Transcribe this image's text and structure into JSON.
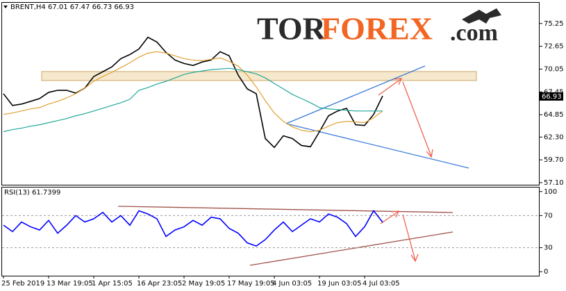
{
  "chart_data": [
    {
      "type": "line",
      "title": "BRENT,H4  67.01 67.47 66.73 66.93",
      "watermark": [
        "TOR",
        "FOREX",
        ".com"
      ],
      "last_price_label": 66.93,
      "ylim": [
        56.86,
        77.61
      ],
      "yticks": [
        75.25,
        72.65,
        70.05,
        67.45,
        64.85,
        {
          "value": 62.3,
          "label": "62.30"
        },
        {
          "value": 59.7,
          "label": "59.70"
        },
        {
          "value": 57.1,
          "label": "57.10"
        }
      ],
      "series": [
        {
          "color": "#000000",
          "values": [
            67.24,
            65.9,
            66.06,
            66.37,
            66.69,
            67.39,
            67.63,
            67.63,
            67.31,
            67.86,
            69.2,
            69.75,
            70.3,
            71.24,
            71.71,
            72.34,
            73.68,
            73.13,
            71.95,
            71.08,
            70.69,
            70.46,
            70.85,
            71.08,
            72.03,
            71.56,
            69.36,
            67.79,
            67.24,
            62.13,
            61.11,
            62.44,
            62.13,
            61.34,
            61.19,
            62.91,
            64.72,
            65.27,
            65.58,
            63.7,
            63.62,
            64.88,
            66.99
          ]
        },
        {
          "color": "#e0a030",
          "values": [
            64.88,
            65.04,
            65.27,
            65.51,
            65.66,
            66.06,
            66.37,
            66.76,
            67.24,
            67.86,
            68.65,
            69.2,
            69.67,
            70.22,
            70.77,
            71.4,
            71.87,
            72.03,
            71.87,
            71.56,
            71.24,
            71.08,
            71.0,
            71.16,
            71.32,
            70.93,
            70.38,
            69.36,
            68.02,
            66.45,
            65.04,
            64.09,
            63.46,
            63.07,
            62.91,
            63.07,
            63.54,
            63.94,
            64.09,
            64.02,
            63.94,
            64.49,
            65.27
          ]
        },
        {
          "color": "#20a89a",
          "values": [
            62.91,
            63.15,
            63.31,
            63.54,
            63.7,
            63.94,
            64.17,
            64.41,
            64.72,
            64.96,
            65.27,
            65.58,
            65.9,
            66.21,
            66.61,
            67.63,
            67.94,
            68.34,
            68.65,
            69.04,
            69.44,
            69.67,
            69.83,
            69.98,
            70.06,
            70.14,
            69.98,
            69.75,
            69.51,
            69.04,
            68.41,
            67.79,
            67.16,
            66.69,
            66.21,
            65.66,
            65.51,
            65.43,
            65.35,
            65.27,
            65.27,
            65.27,
            65.27
          ]
        }
      ]
    },
    {
      "type": "line",
      "title": "RSI(13) 61.7399",
      "ylim": [
        -5,
        105
      ],
      "yticks": [
        100,
        70,
        30,
        0
      ],
      "categories": [
        "25 Feb 2019",
        null,
        null,
        null,
        null,
        "13 Mar 19:05",
        null,
        null,
        null,
        null,
        "1 Apr 15:05",
        null,
        null,
        null,
        null,
        "16 Apr 23:05",
        null,
        null,
        null,
        null,
        "2 May 19:05",
        null,
        null,
        null,
        null,
        "17 May 19:05",
        null,
        null,
        null,
        null,
        "4 Jun 03:05",
        null,
        null,
        null,
        null,
        "19 Jun 03:05",
        null,
        null,
        null,
        null,
        "4 Jul 03:05",
        null,
        null
      ],
      "series": [
        {
          "color": "#0000ff",
          "values": [
            58,
            50,
            62,
            56,
            52,
            64,
            48,
            58,
            70,
            62,
            66,
            74,
            62,
            70,
            58,
            76,
            72,
            66,
            44,
            52,
            56,
            64,
            58,
            68,
            66,
            54,
            48,
            36,
            32,
            40,
            52,
            62,
            50,
            58,
            66,
            62,
            72,
            68,
            60,
            44,
            56,
            76,
            61.74
          ]
        }
      ]
    }
  ]
}
